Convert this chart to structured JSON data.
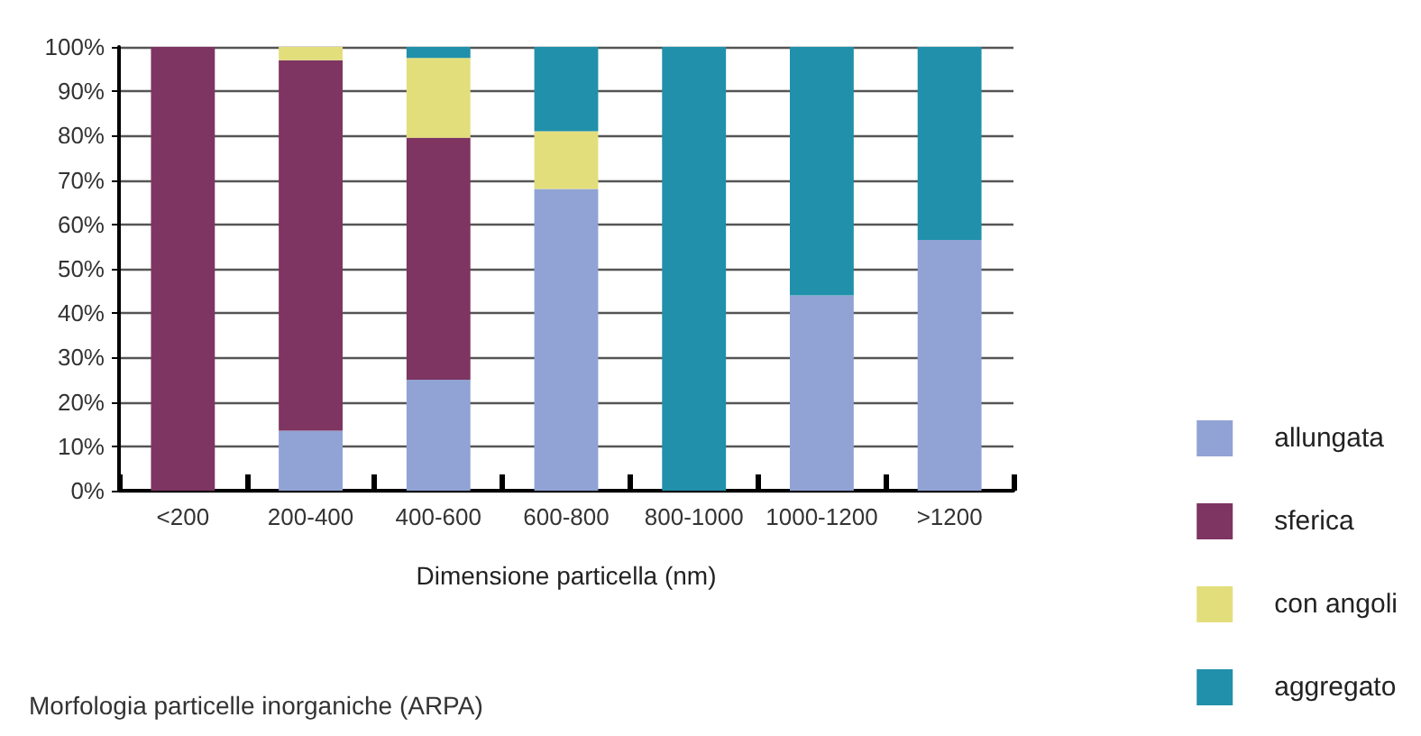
{
  "chart_data": {
    "type": "bar",
    "stacked": true,
    "xlabel": "Dimensione particella (nm)",
    "categories": [
      "<200",
      "200-400",
      "400-600",
      "600-800",
      "800-1000",
      "1000-1200",
      ">1200"
    ],
    "series": [
      {
        "name": "allungata",
        "color": "#91a3d4",
        "values": [
          0,
          13.5,
          25,
          68,
          0,
          44,
          56.5
        ]
      },
      {
        "name": "sferica",
        "color": "#7e3561",
        "values": [
          100,
          83.5,
          54.5,
          0,
          0,
          0,
          0
        ]
      },
      {
        "name": "con angoli",
        "color": "#e3de7c",
        "values": [
          0,
          3,
          18,
          13,
          0,
          0,
          0
        ]
      },
      {
        "name": "aggregato",
        "color": "#2190aa",
        "values": [
          0,
          0,
          2.5,
          19,
          100,
          56,
          43.5
        ]
      }
    ],
    "ylim": [
      0,
      100
    ],
    "yticks": [
      {
        "value": 0,
        "label": "0%"
      },
      {
        "value": 10,
        "label": "10%"
      },
      {
        "value": 20,
        "label": "20%"
      },
      {
        "value": 30,
        "label": "30%"
      },
      {
        "value": 40,
        "label": "40%"
      },
      {
        "value": 50,
        "label": "50%"
      },
      {
        "value": 60,
        "label": "60%"
      },
      {
        "value": 70,
        "label": "70%"
      },
      {
        "value": 80,
        "label": "80%"
      },
      {
        "value": 90,
        "label": "90%"
      },
      {
        "value": 100,
        "label": "100%"
      }
    ],
    "grid": "y",
    "legend": "bottom right",
    "annotations": [
      "Morfologia particelle inorganiche (ARPA)"
    ]
  }
}
